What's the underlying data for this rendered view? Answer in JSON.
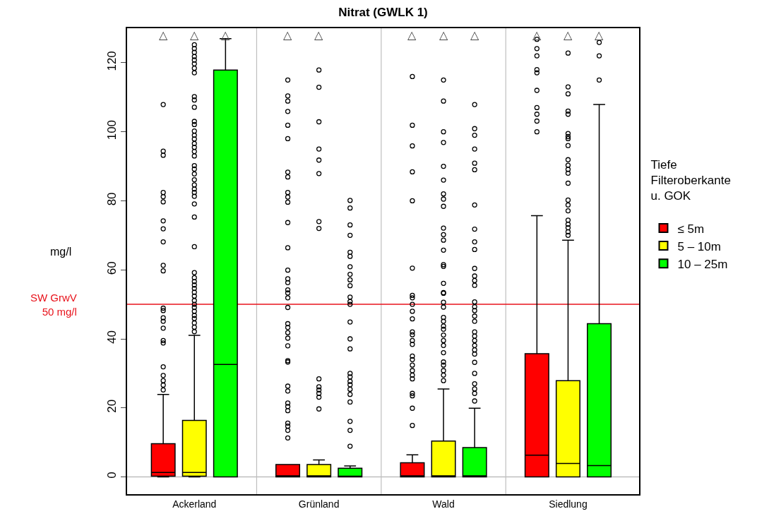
{
  "chart_data": {
    "type": "box",
    "title": "Nitrat (GWLK 1)",
    "ylabel": "mg/l",
    "legend_title": "Tiefe\nFilteroberkante\nu. GOK",
    "categories": [
      "Ackerland",
      "Grünland",
      "Wald",
      "Siedlung"
    ],
    "ylim": [
      -5,
      130
    ],
    "yticks": [
      0,
      20,
      40,
      60,
      80,
      100,
      120
    ],
    "grid": "x",
    "legend": "right",
    "series": [
      {
        "name": "≤ 5m",
        "color": "#ff0000",
        "boxes": [
          {
            "low": 0,
            "q1": 0.2,
            "median": 1.3,
            "q3": 9.6,
            "high": 23.9,
            "outliers": [
              107.9,
              94.4,
              93.2,
              82.4,
              81.2,
              79.7,
              74.2,
              71.9,
              68.1,
              61.3,
              59.7,
              48.9,
              48.2,
              46.1,
              45.1,
              43.1,
              39.5,
              38.8,
              31.9,
              29.4,
              27.9,
              26.6,
              25.2
            ]
          },
          {
            "low": 0,
            "q1": 0,
            "median": 0.3,
            "q3": 3.6,
            "high": 3.6,
            "outliers": [
              115,
              110.4,
              108.9,
              105.9,
              101.9,
              98,
              88.3,
              86.9,
              82.4,
              81.1,
              79.6,
              73.7,
              66.4,
              59.9,
              57.4,
              56.3,
              54.2,
              53.3,
              51.9,
              49.1,
              44.4,
              43.3,
              41.8,
              40.2,
              38,
              33.7,
              33.3,
              26.3,
              24.9,
              21.4,
              20.4,
              19.2,
              15.6,
              14.7,
              13.5,
              11.3
            ]
          },
          {
            "low": 0,
            "q1": 0,
            "median": 0.3,
            "q3": 4.1,
            "high": 6.4,
            "outliers": [
              116,
              101.9,
              95.9,
              88.4,
              80,
              60.5,
              52.6,
              51.9,
              50,
              48,
              45.8,
              42,
              41.2,
              39.5,
              38.4,
              35,
              34,
              32.4,
              30.8,
              29.5,
              28.4,
              24.2,
              23.5,
              19.9,
              14.9
            ]
          },
          {
            "low": 0,
            "q1": 0,
            "median": 6.3,
            "q3": 35.7,
            "high": 75.7,
            "outliers": [
              126.8,
              124.1,
              122,
              118,
              117.1,
              112,
              107,
              105.1,
              103.1,
              100
            ]
          }
        ]
      },
      {
        "name": "5 – 10m",
        "color": "#ffff00",
        "boxes": [
          {
            "low": 0,
            "q1": 0.2,
            "median": 1.3,
            "q3": 16.4,
            "high": 41,
            "outliers": [
              125.2,
              124.1,
              123,
              121.8,
              120.8,
              119.7,
              118.4,
              117.1,
              110.2,
              109.2,
              107.1,
              103,
              102.1,
              100.2,
              99,
              97.9,
              96.6,
              95.5,
              94.3,
              93,
              90.2,
              89.2,
              87.8,
              86.1,
              84.6,
              83.4,
              82.4,
              81.3,
              79.1,
              75.3,
              66.7,
              59.2,
              57.7,
              56.6,
              55.6,
              54.6,
              53.5,
              52.4,
              51.1,
              50,
              49.1,
              48,
              46.8,
              45.9,
              44.6,
              43.4,
              42.1
            ]
          },
          {
            "low": 0,
            "q1": 0,
            "median": 0.3,
            "q3": 3.6,
            "high": 4.9,
            "outliers": [
              117.9,
              112.9,
              102.9,
              95,
              91.8,
              87.9,
              74,
              72,
              28.4,
              26.1,
              25.2,
              24.2,
              23.1,
              19.7
            ]
          },
          {
            "low": 0,
            "q1": 0,
            "median": 0.3,
            "q3": 10.4,
            "high": 25.5,
            "outliers": [
              115,
              108.9,
              100,
              96.9,
              90,
              86,
              82,
              80.5,
              78.4,
              72.1,
              70.2,
              68.6,
              65.7,
              61.5,
              61,
              56.1,
              53.4,
              53.2,
              50.6,
              49.2,
              46.2,
              45.1,
              43.7,
              42.8,
              41.1,
              39.5,
              38.1,
              36,
              33.3,
              32.4,
              30.8,
              29.5,
              27.9
            ]
          },
          {
            "low": 0,
            "q1": 0,
            "median": 3.9,
            "q3": 27.9,
            "high": 68.6,
            "outliers": [
              122.8,
              113,
              111,
              106,
              105.1,
              99.5,
              98.6,
              98,
              96,
              91.9,
              90.3,
              89.1,
              88,
              85.1,
              80.2,
              78.8,
              77.1,
              74.4,
              73.2,
              72.2,
              71,
              70
            ]
          }
        ]
      },
      {
        "name": "10 – 25m",
        "color": "#00ff00",
        "boxes": [
          {
            "low": 0,
            "q1": 0,
            "median": 32.6,
            "q3": 117.9,
            "high": 127
          },
          {
            "low": 0,
            "q1": 0,
            "median": 0.2,
            "q3": 2.5,
            "high": 3.2,
            "outliers": [
              80.1,
              77.9,
              73,
              70,
              65.1,
              63.9,
              60.9,
              58.7,
              57.1,
              55.4,
              52.1,
              50.8,
              50,
              44.9,
              40,
              37.1,
              30,
              29,
              27.7,
              26.7,
              25.4,
              23.9,
              21.7,
              16.1,
              13.5,
              8.9
            ]
          },
          {
            "low": 0,
            "q1": 0,
            "median": 0.3,
            "q3": 8.5,
            "high": 19.9,
            "outliers": [
              107.9,
              100.9,
              99,
              95,
              90.9,
              89,
              78.8,
              71.8,
              68.1,
              65.9,
              60.4,
              58.2,
              56.9,
              55.5,
              50.7,
              49.3,
              48.2,
              46.6,
              45.1,
              42,
              40.8,
              39.5,
              38.1,
              36.8,
              35.6,
              33.2,
              30,
              27,
              25.5,
              24.2,
              22
            ]
          },
          {
            "low": 0,
            "q1": 0,
            "median": 3.3,
            "q3": 44.4,
            "high": 107.9,
            "outliers": [
              125.9,
              122,
              115
            ]
          }
        ]
      }
    ],
    "ref_lines": [
      {
        "axis": "y",
        "value": 50,
        "label": "SW GrwV\n50 mg/l",
        "color": "#e8121b"
      },
      {
        "axis": "y",
        "value": 0,
        "color": "#bebebe"
      }
    ],
    "annotations": [
      "△ △ △",
      "△ △",
      "△ △ △",
      "△ △ △"
    ]
  }
}
